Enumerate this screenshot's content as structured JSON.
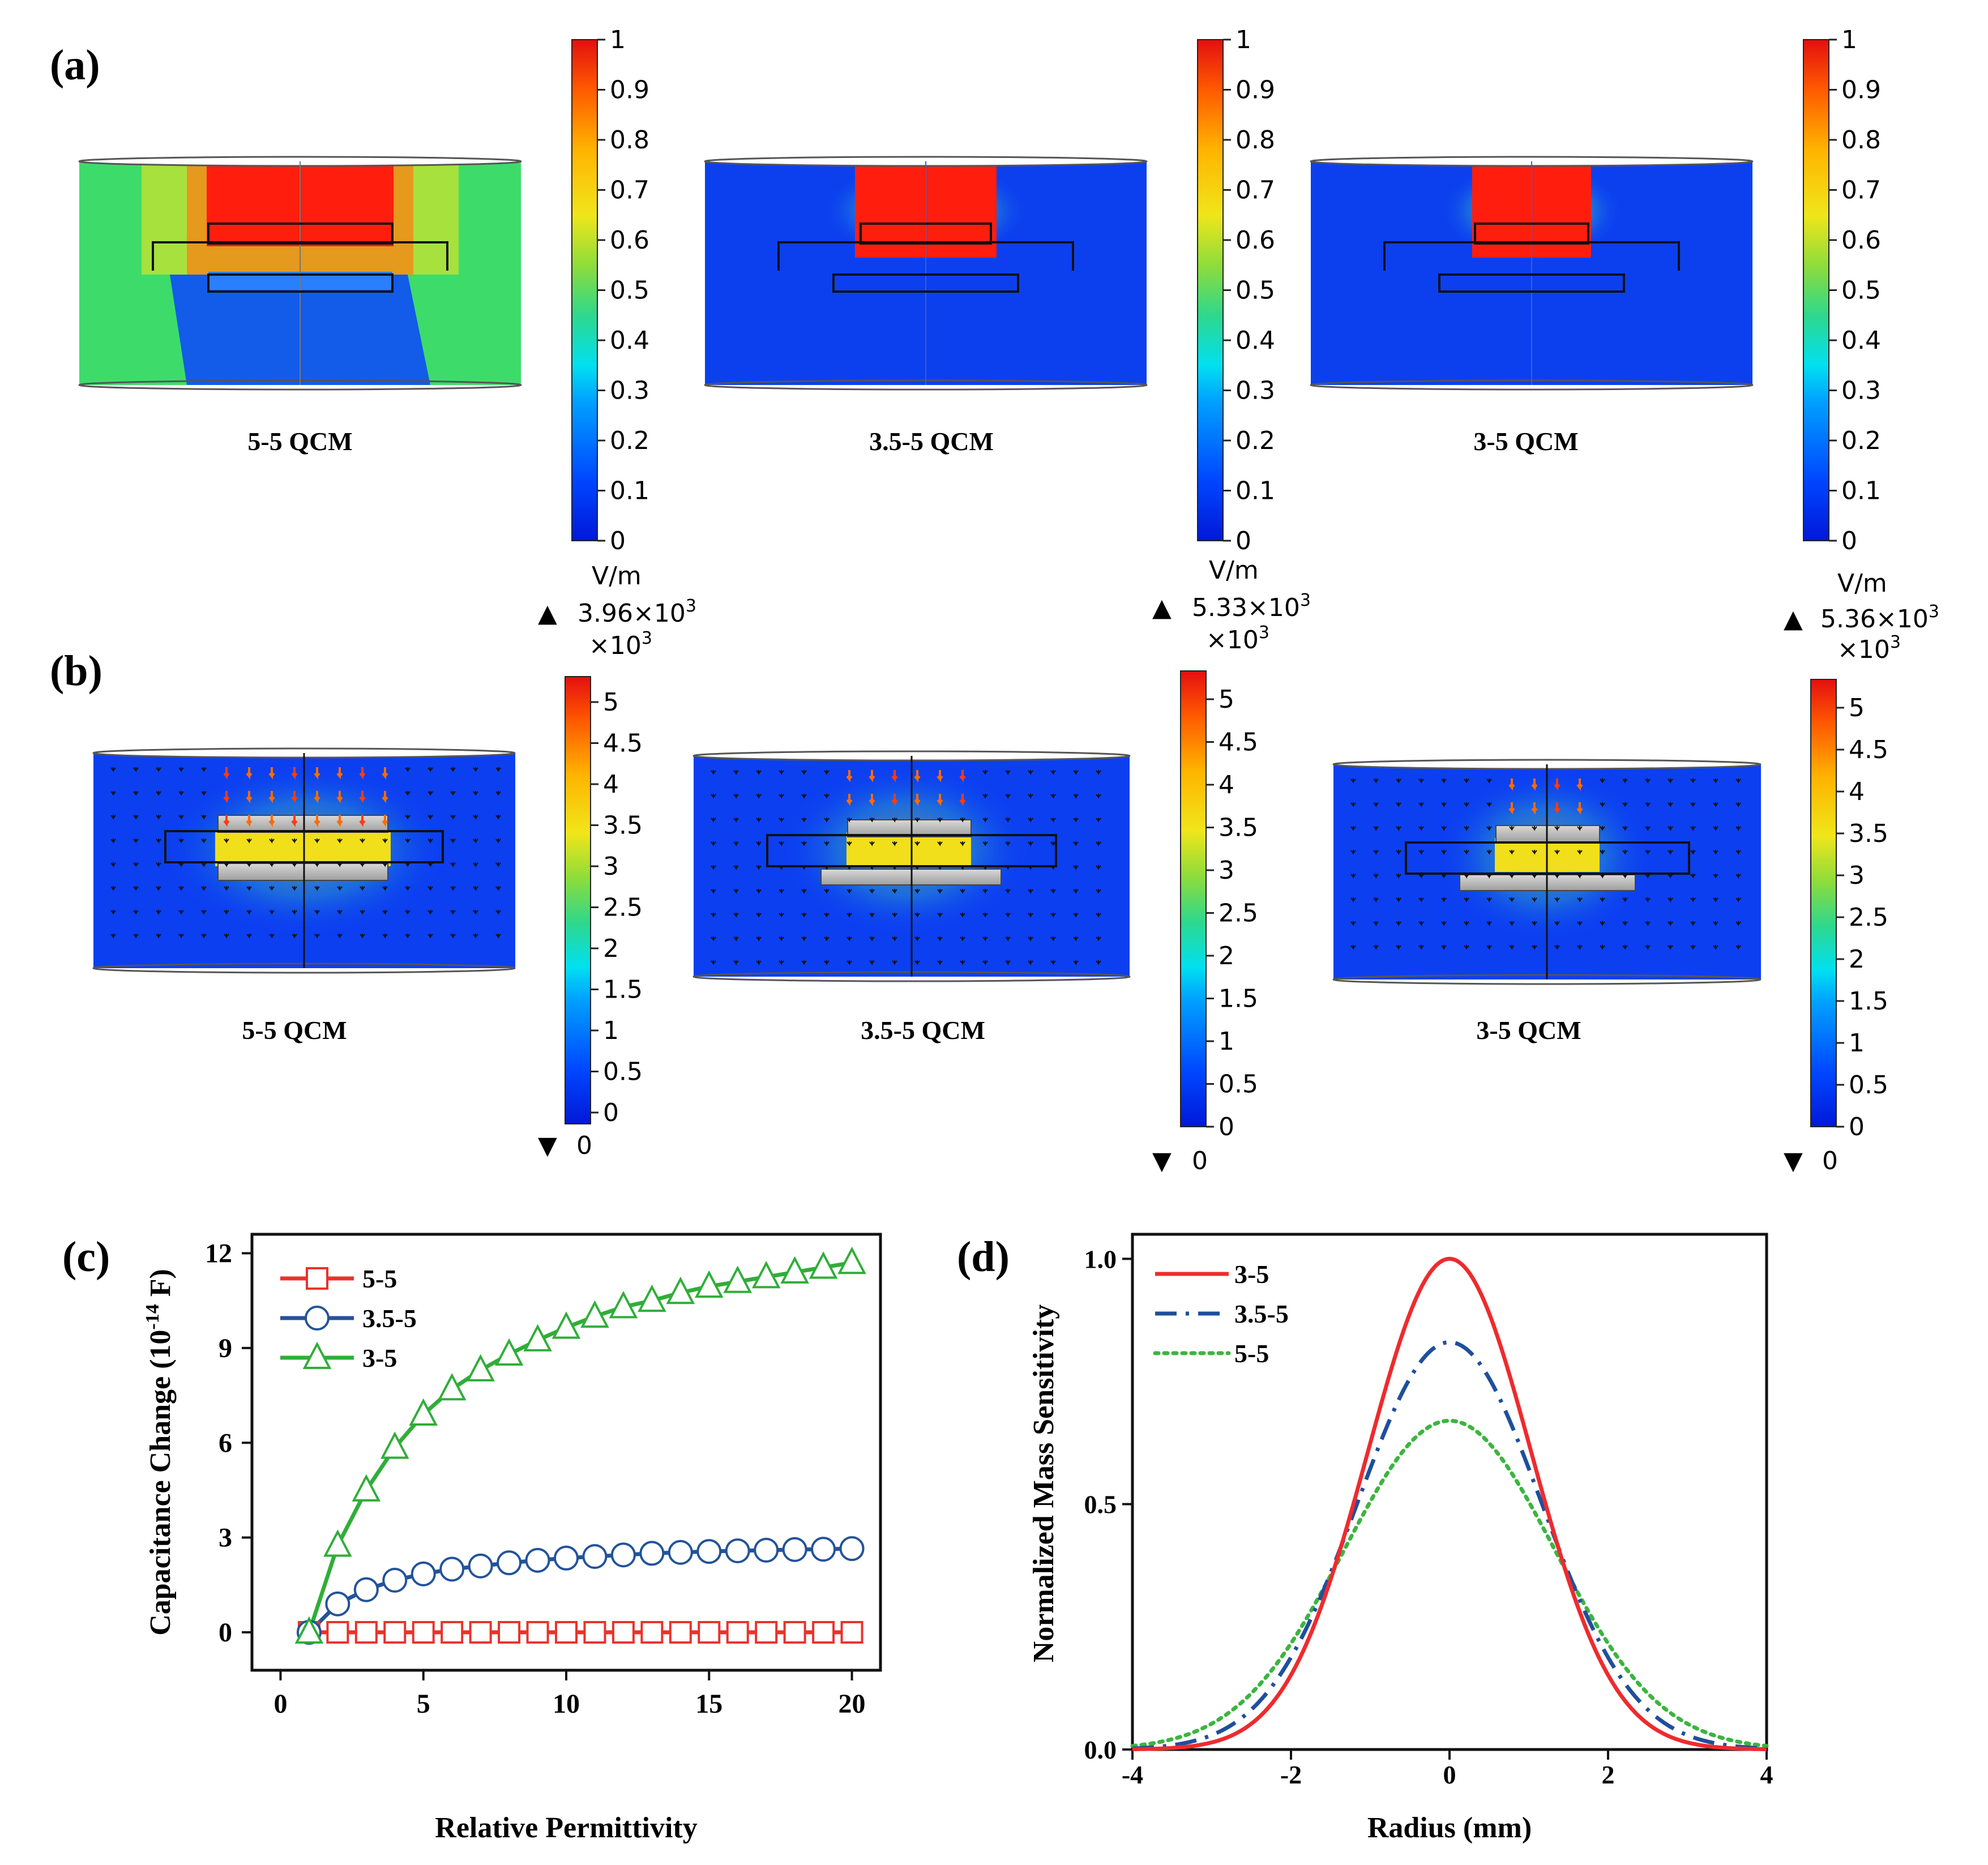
{
  "panel_labels": {
    "a": "(a)",
    "b": "(b)",
    "c": "(c)",
    "d": "(d)"
  },
  "row_a": {
    "colorbar_ticks": [
      "0",
      "0.1",
      "0.2",
      "0.3",
      "0.4",
      "0.5",
      "0.6",
      "0.7",
      "0.8",
      "0.9",
      "1"
    ],
    "panels": [
      {
        "caption": "5-5 QCM",
        "background": "green"
      },
      {
        "caption": "3.5-5 QCM",
        "background": "blue"
      },
      {
        "caption": "3-5 QCM",
        "background": "blue"
      }
    ]
  },
  "row_b": {
    "colorbar_ticks": [
      "0",
      "0.5",
      "1",
      "1.5",
      "2",
      "2.5",
      "3",
      "3.5",
      "4",
      "4.5",
      "5"
    ],
    "panels": [
      {
        "caption": "5-5 QCM",
        "unit": "V/m",
        "max_label": "3.96×10",
        "max_exp": "3",
        "scale_label": "×10",
        "scale_exp": "3",
        "min_label": "0"
      },
      {
        "caption": "3.5-5 QCM",
        "unit": "V/m",
        "max_label": "5.33×10",
        "max_exp": "3",
        "scale_label": "×10",
        "scale_exp": "3",
        "min_label": "0"
      },
      {
        "caption": "3-5 QCM",
        "unit": "V/m",
        "max_label": "5.36×10",
        "max_exp": "3",
        "scale_label": "×10",
        "scale_exp": "3",
        "min_label": "0"
      }
    ]
  },
  "chart_data": [
    {
      "id": "c",
      "type": "line",
      "xlabel": "Relative Permittivity",
      "ylabel_main": "Capacitance Change (10",
      "ylabel_sup": "-14",
      "ylabel_tail": " F)",
      "xlim": [
        -1,
        21
      ],
      "ylim": [
        -1.2,
        12.6
      ],
      "xticks": [
        0,
        5,
        10,
        15,
        20
      ],
      "yticks": [
        0,
        3,
        6,
        9,
        12
      ],
      "legend_position": "top-left",
      "series": [
        {
          "name": "5-5",
          "color": "#e8332c",
          "marker": "square",
          "x": [
            1,
            2,
            3,
            4,
            5,
            6,
            7,
            8,
            9,
            10,
            11,
            12,
            13,
            14,
            15,
            16,
            17,
            18,
            19,
            20
          ],
          "y": [
            0,
            0,
            0,
            0,
            0,
            0,
            0,
            0,
            0,
            0,
            0,
            0,
            0,
            0,
            0,
            0,
            0,
            0,
            0,
            0
          ]
        },
        {
          "name": "3.5-5",
          "color": "#23539a",
          "marker": "circle",
          "x": [
            1,
            2,
            3,
            4,
            5,
            6,
            7,
            8,
            9,
            10,
            11,
            12,
            13,
            14,
            15,
            16,
            17,
            18,
            19,
            20
          ],
          "y": [
            0,
            0.9,
            1.35,
            1.65,
            1.85,
            2.0,
            2.1,
            2.2,
            2.28,
            2.35,
            2.4,
            2.45,
            2.5,
            2.53,
            2.56,
            2.58,
            2.6,
            2.62,
            2.63,
            2.65
          ]
        },
        {
          "name": "3-5",
          "color": "#2fae38",
          "marker": "triangle",
          "x": [
            1,
            2,
            3,
            4,
            5,
            6,
            7,
            8,
            9,
            10,
            11,
            12,
            13,
            14,
            15,
            16,
            17,
            18,
            19,
            20
          ],
          "y": [
            0,
            2.75,
            4.5,
            5.85,
            6.9,
            7.7,
            8.3,
            8.8,
            9.25,
            9.65,
            10.0,
            10.3,
            10.5,
            10.75,
            10.95,
            11.1,
            11.25,
            11.4,
            11.55,
            11.7
          ]
        }
      ]
    },
    {
      "id": "d",
      "type": "line",
      "xlabel": "Radius (mm)",
      "ylabel": "Normalized Mass Sensitivity",
      "xlim": [
        -4,
        4
      ],
      "ylim": [
        0,
        1.05
      ],
      "xticks": [
        -4,
        -2,
        0,
        2,
        4
      ],
      "xtick_labels": [
        "-4",
        "-2",
        "0",
        "2",
        "4"
      ],
      "yticks": [
        0,
        0.5,
        1.0
      ],
      "ytick_labels": [
        "0.0",
        "0.5",
        "1.0"
      ],
      "legend_position": "top-left",
      "series": [
        {
          "name": "3-5",
          "color": "#ee2b2e",
          "style": "solid",
          "peak": 1.0,
          "sigma": 1.03
        },
        {
          "name": "3.5-5",
          "color": "#1f4f9c",
          "style": "dashdot",
          "peak": 0.83,
          "sigma": 1.16
        },
        {
          "name": "5-5",
          "color": "#3bb53f",
          "style": "dotted",
          "peak": 0.67,
          "sigma": 1.33
        }
      ]
    }
  ]
}
